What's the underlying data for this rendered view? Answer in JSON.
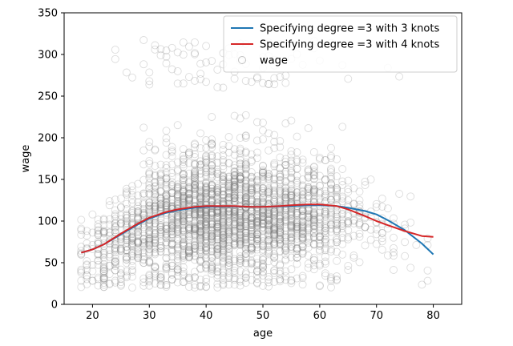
{
  "chart_data": {
    "type": "scatter",
    "title": "",
    "xlabel": "age",
    "ylabel": "wage",
    "xlim": [
      15,
      85
    ],
    "ylim": [
      0,
      350
    ],
    "xticks": [
      20,
      30,
      40,
      50,
      60,
      70,
      80
    ],
    "yticks": [
      0,
      50,
      100,
      150,
      200,
      250,
      300,
      350
    ],
    "grid": false,
    "legend_position": "top-right",
    "series": [
      {
        "name": "Specifying degree =3 with 3 knots",
        "kind": "line",
        "color": "#1f77b4",
        "x": [
          18,
          20,
          22,
          25,
          28,
          30,
          33,
          35,
          38,
          40,
          43,
          45,
          48,
          50,
          53,
          55,
          58,
          60,
          63,
          65,
          68,
          70,
          72,
          75,
          78,
          80
        ],
        "y": [
          62,
          66,
          72,
          84,
          96,
          103,
          110,
          113,
          116,
          117,
          117.5,
          117.5,
          117,
          117,
          117.5,
          118,
          119,
          119,
          118,
          116,
          112,
          108,
          101,
          89,
          73,
          60
        ]
      },
      {
        "name": "Specifying degree =3 with 4 knots",
        "kind": "line",
        "color": "#d62728",
        "x": [
          18,
          20,
          22,
          25,
          28,
          30,
          33,
          35,
          38,
          40,
          43,
          45,
          48,
          50,
          53,
          55,
          58,
          60,
          63,
          65,
          68,
          70,
          72,
          75,
          78,
          80
        ],
        "y": [
          62,
          66,
          72,
          85,
          97,
          104,
          111,
          114,
          117,
          118,
          118,
          118,
          117,
          117,
          118,
          119,
          120,
          120,
          118,
          114,
          106,
          100,
          95,
          88,
          82,
          81
        ]
      },
      {
        "name": "wage",
        "kind": "scatter",
        "color": "#808080",
        "marker": "hollow-circle",
        "note_n_points": 3000,
        "distribution": {
          "age_range": [
            18,
            80
          ],
          "main_band_wage_range": [
            20,
            230
          ],
          "upper_cluster_wage_range": [
            260,
            318
          ]
        }
      }
    ]
  }
}
